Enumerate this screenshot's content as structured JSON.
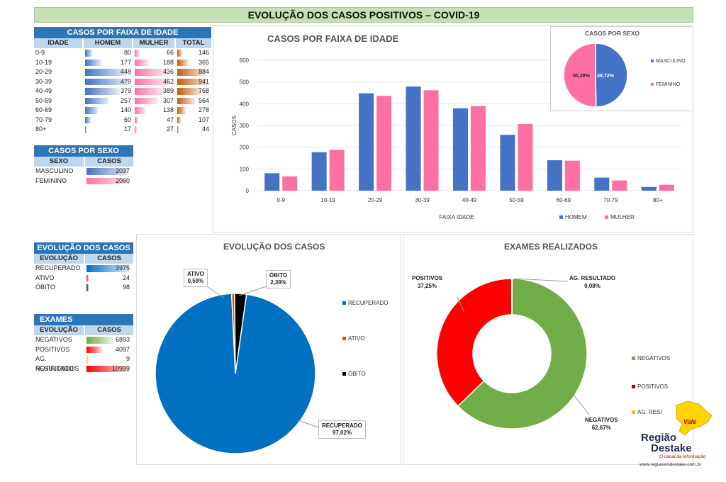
{
  "title": "EVOLUÇÃO DOS  CASOS POSITIVOS – COVID-19",
  "age_table": {
    "title": "CASOS POR FAIXA DE IDADE",
    "headers": [
      "IDADE",
      "HOMEM",
      "MULHER",
      "TOTAL"
    ],
    "rows": [
      {
        "age": "0-9",
        "m": 80,
        "f": 66,
        "t": 146
      },
      {
        "age": "10-19",
        "m": 177,
        "f": 188,
        "t": 365
      },
      {
        "age": "20-29",
        "m": 448,
        "f": 436,
        "t": 884
      },
      {
        "age": "30-39",
        "m": 479,
        "f": 462,
        "t": 941
      },
      {
        "age": "40-49",
        "m": 379,
        "f": 389,
        "t": 768
      },
      {
        "age": "50-59",
        "m": 257,
        "f": 307,
        "t": 564
      },
      {
        "age": "60-69",
        "m": 140,
        "f": 138,
        "t": 278
      },
      {
        "age": "70-79",
        "m": 60,
        "f": 47,
        "t": 107
      },
      {
        "age": "80+",
        "m": 17,
        "f": 27,
        "t": 44
      }
    ]
  },
  "sex_table": {
    "title": "CASOS POR SEXO",
    "headers": [
      "SEXO",
      "CASOS"
    ],
    "rows": [
      {
        "label": "MASCULINO",
        "value": 2037
      },
      {
        "label": "FEMININO",
        "value": 2060
      }
    ]
  },
  "evo_table": {
    "title": "EVOLUÇÃO DOS CASOS",
    "headers": [
      "EVOLUÇÃO",
      "CASOS"
    ],
    "rows": [
      {
        "label": "RECUPERADO",
        "value": 3975
      },
      {
        "label": "ATIVO",
        "value": 24
      },
      {
        "label": "ÓBITO",
        "value": 98
      }
    ]
  },
  "exam_table": {
    "title": "EXAMES",
    "headers": [
      "EVOLUÇÃO",
      "CASOS"
    ],
    "rows": [
      {
        "label": "NEGATIVOS",
        "value": 6893
      },
      {
        "label": "POSITIVOS",
        "value": 4097
      },
      {
        "label": "AG. RESULTADO",
        "value": 9
      },
      {
        "label": "NOTIFICADOS",
        "value": 10999
      }
    ]
  },
  "colors": {
    "homem": "#4472c4",
    "mulher": "#ff6fa4",
    "total": "#c55a11",
    "recuperado": "#0070c0",
    "ativo": "#c55a11",
    "obito": "#000000",
    "negativos": "#70ad47",
    "positivos": "#ff0000",
    "ag": "#ffc000"
  },
  "chart_data": [
    {
      "type": "bar",
      "title": "CASOS POR FAIXA DE IDADE",
      "xlabel": "FAIXA IDADE",
      "ylabel": "CASOS",
      "ylim": [
        0,
        600
      ],
      "yticks": [
        0,
        100,
        200,
        300,
        400,
        500,
        600
      ],
      "categories": [
        "0-9",
        "10-19",
        "20-29",
        "30-39",
        "40-49",
        "50-59",
        "60-69",
        "70-79",
        "80+"
      ],
      "series": [
        {
          "name": "HOMEM",
          "values": [
            80,
            177,
            448,
            479,
            379,
            257,
            140,
            60,
            17
          ]
        },
        {
          "name": "MULHER",
          "values": [
            66,
            188,
            436,
            462,
            389,
            307,
            138,
            47,
            27
          ]
        }
      ],
      "legend": "bottom-right"
    },
    {
      "type": "pie",
      "title": "CASOS POR SEXO",
      "labels": [
        "MASCULINO",
        "FEMININO"
      ],
      "values": [
        49.72,
        50.28
      ],
      "data_labels": [
        "49,72%",
        "50,28%"
      ],
      "legend": "right"
    },
    {
      "type": "pie",
      "title": "EVOLUÇÃO DOS CASOS",
      "labels": [
        "RECUPERADO",
        "ATIVO",
        "ÓBITO"
      ],
      "values": [
        97.02,
        0.59,
        2.39
      ],
      "data_labels": [
        "97,02%",
        "0,59%",
        "2,39%"
      ],
      "legend": "right"
    },
    {
      "type": "pie",
      "title": "EXAMES REALIZADOS",
      "labels": [
        "NEGATIVOS",
        "POSITIVOS",
        "AG. RESULTADO"
      ],
      "legend_labels": [
        "NEGATIVOS",
        "POSITIVOS",
        "AG. RESI"
      ],
      "values": [
        62.67,
        37.25,
        0.08
      ],
      "data_labels": [
        "62,67%",
        "37,25%",
        "0,08%"
      ],
      "legend": "right"
    }
  ],
  "logo": {
    "line1": "Região",
    "line2": "Destake",
    "tagline": "O canal da informação",
    "url": "www.regiaoemdestake.com.br"
  }
}
